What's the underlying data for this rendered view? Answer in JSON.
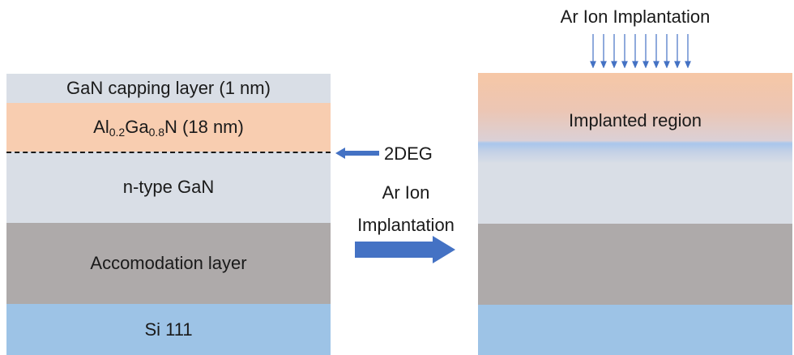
{
  "left_stack": {
    "capping": "GaN capping layer (1 nm)",
    "algan": {
      "al": "Al",
      "al_sub": "0.2",
      "ga": "Ga",
      "ga_sub": "0.8",
      "rest": "N (18 nm)"
    },
    "ngan": "n-type GaN",
    "accommodation": "Accomodation layer",
    "substrate": "Si 111"
  },
  "annotations": {
    "deg": "2DEG",
    "process_line1": "Ar Ion",
    "process_line2": "Implantation"
  },
  "right_stack": {
    "top_label": "Ar Ion Implantation",
    "implanted": "Implanted region"
  },
  "colors": {
    "gan": "#d9dee6",
    "algan": "#f8cdb0",
    "accommodation": "#aeaaaa",
    "silicon": "#9dc3e6",
    "arrow": "#4472c4"
  }
}
